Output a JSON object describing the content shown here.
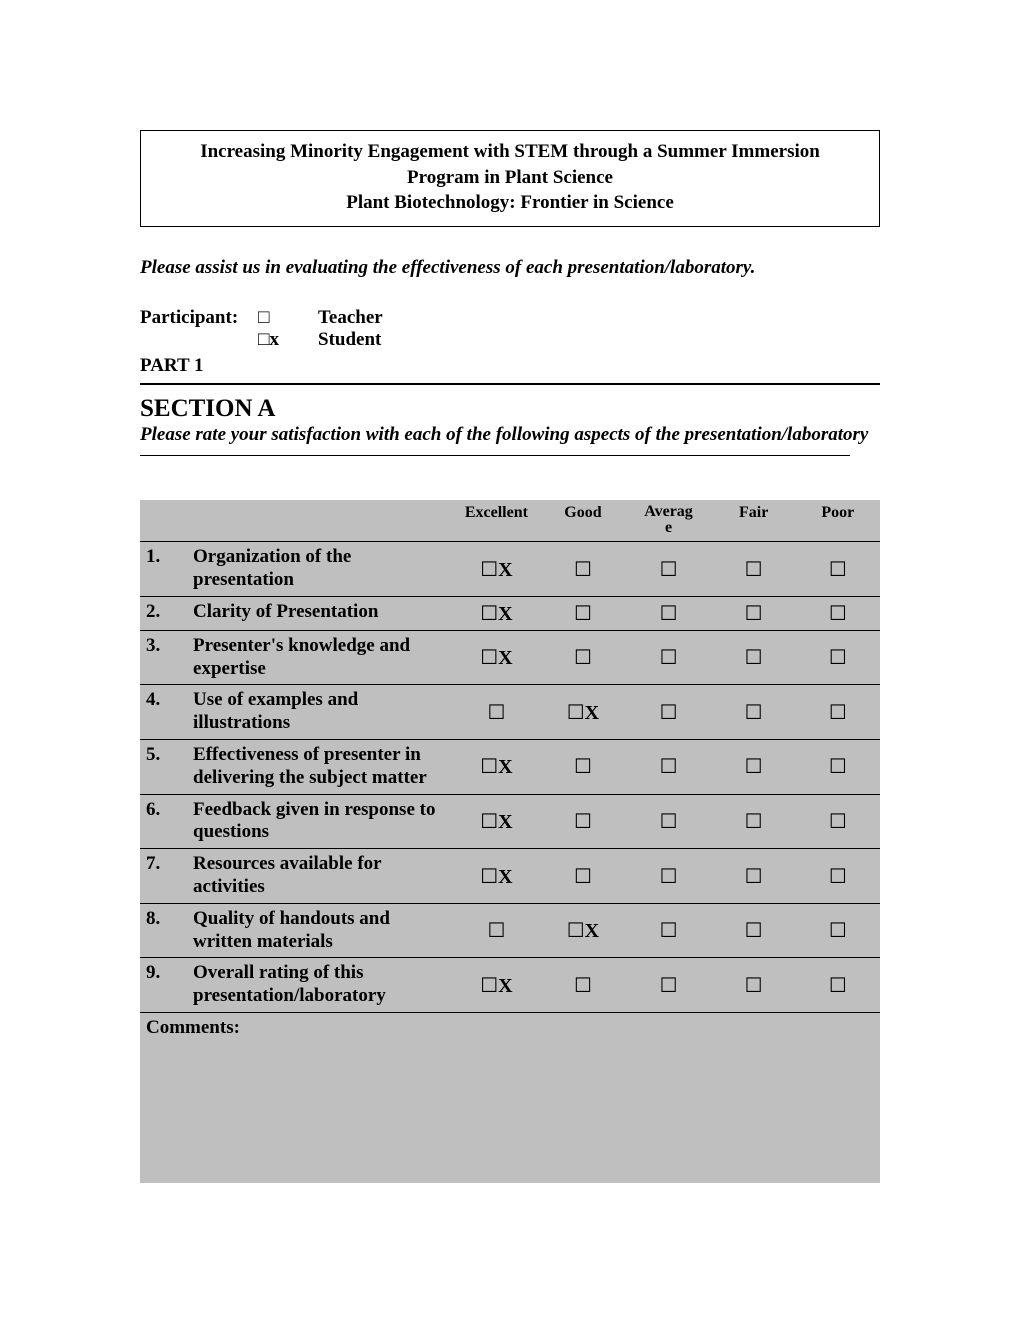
{
  "header": {
    "line1": "Increasing Minority Engagement with STEM through a Summer Immersion",
    "line2": "Program in Plant Science",
    "line3": "Plant Biotechnology:  Frontier in Science"
  },
  "intro": "Please assist us in evaluating the effectiveness of each presentation/laboratory.",
  "participant": {
    "label": "Participant:",
    "teacher_check": "□",
    "teacher_label": "Teacher",
    "student_check": "□x",
    "student_label": "Student"
  },
  "part_label": "PART 1",
  "section": {
    "title": "SECTION A",
    "subtitle": "Please rate your satisfaction with each of the following aspects of the presentation/laboratory"
  },
  "columns": [
    "Excellent",
    "Good",
    "Average",
    "Fair",
    "Poor"
  ],
  "checkbox_glyph": "☐",
  "x_glyph": "X",
  "questions": [
    {
      "num": "1.",
      "text": "Organization of the presentation",
      "selected": 0
    },
    {
      "num": "2.",
      "text": "Clarity of Presentation",
      "selected": 0
    },
    {
      "num": "3.",
      "text": "Presenter's knowledge and expertise",
      "selected": 0
    },
    {
      "num": "4.",
      "text": "Use of examples and illustrations",
      "selected": 1
    },
    {
      "num": "5.",
      "text": "Effectiveness of presenter in delivering the subject matter",
      "selected": 0
    },
    {
      "num": "6.",
      "text": "Feedback given in response to questions",
      "selected": 0
    },
    {
      "num": "7.",
      "text": "Resources available for activities",
      "selected": 0
    },
    {
      "num": "8.",
      "text": "Quality of handouts and written materials",
      "selected": 1
    },
    {
      "num": "9.",
      "text": "Overall rating of this presentation/laboratory",
      "selected": 0
    }
  ],
  "comments_label": "Comments:",
  "colors": {
    "table_bg": "#bfbfbf",
    "page_bg": "#ffffff",
    "text": "#000000",
    "border": "#000000"
  }
}
